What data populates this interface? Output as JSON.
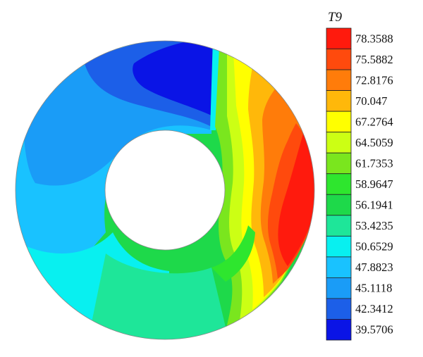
{
  "chart_data": {
    "type": "heatmap",
    "subtype": "annular contour plot",
    "legend": {
      "title": "T9",
      "placement": "right",
      "levels": [
        {
          "label": "78.3588",
          "color": "#ff1a0d"
        },
        {
          "label": "75.5882",
          "color": "#ff4a0d"
        },
        {
          "label": "72.8176",
          "color": "#ff7c0a"
        },
        {
          "label": "70.047",
          "color": "#ffb80a"
        },
        {
          "label": "67.2764",
          "color": "#ffff00"
        },
        {
          "label": "64.5059",
          "color": "#ccff14"
        },
        {
          "label": "61.7353",
          "color": "#7ae61e"
        },
        {
          "label": "58.9647",
          "color": "#2ee62e"
        },
        {
          "label": "56.1941",
          "color": "#1ed94a"
        },
        {
          "label": "53.4235",
          "color": "#1ee699"
        },
        {
          "label": "50.6529",
          "color": "#08f0f0"
        },
        {
          "label": "47.8823",
          "color": "#19c2ff"
        },
        {
          "label": "45.1118",
          "color": "#1a9cf7"
        },
        {
          "label": "42.3412",
          "color": "#1c5fe8"
        },
        {
          "label": "39.5706",
          "color": "#0a14e6"
        }
      ]
    }
  }
}
